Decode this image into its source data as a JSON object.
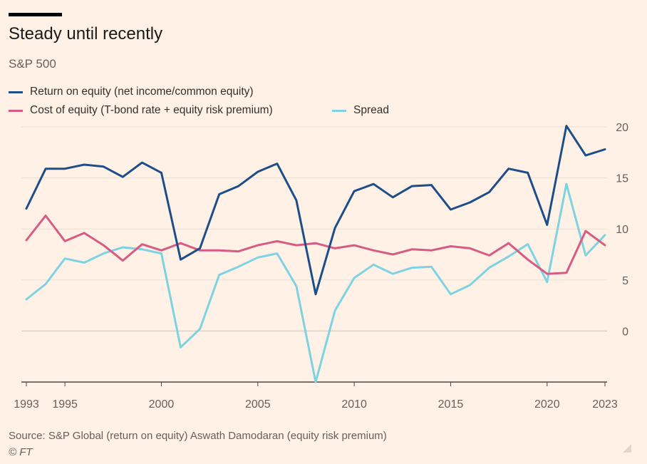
{
  "title": "Steady until recently",
  "subtitle": "S&P 500",
  "legend": [
    {
      "label": "Return on equity (net income/common equity)",
      "color": "#1d4e89"
    },
    {
      "label": "Cost of equity (T-bond rate + equity risk premium)",
      "color": "#d75c84"
    },
    {
      "label": "Spread",
      "color": "#7ed3e3"
    }
  ],
  "source": "Source: S&P Global (return on equity) Aswath Damodaran (equity risk premium)",
  "copyright": "© FT",
  "chart_data": {
    "type": "line",
    "x": [
      1993,
      1994,
      1995,
      1996,
      1997,
      1998,
      1999,
      2000,
      2001,
      2002,
      2003,
      2004,
      2005,
      2006,
      2007,
      2008,
      2009,
      2010,
      2011,
      2012,
      2013,
      2014,
      2015,
      2016,
      2017,
      2018,
      2019,
      2020,
      2021,
      2022,
      2023
    ],
    "x_ticks": [
      1993,
      1995,
      2000,
      2005,
      2010,
      2015,
      2020,
      2023
    ],
    "y_ticks": [
      0,
      5,
      10,
      15,
      20
    ],
    "ylim": [
      -5,
      20
    ],
    "grid": true,
    "series": [
      {
        "name": "Return on equity (net income/common equity)",
        "color": "#1d4e89",
        "values": [
          12.0,
          15.9,
          15.9,
          16.3,
          16.1,
          15.1,
          16.5,
          15.5,
          7.0,
          8.1,
          13.4,
          14.2,
          15.6,
          16.4,
          12.8,
          3.6,
          10.1,
          13.7,
          14.4,
          13.1,
          14.2,
          14.3,
          11.9,
          12.6,
          13.6,
          15.9,
          15.5,
          10.4,
          20.1,
          17.2,
          17.8
        ]
      },
      {
        "name": "Cost of equity (T-bond rate + equity risk premium)",
        "color": "#d75c84",
        "values": [
          8.9,
          11.3,
          8.8,
          9.6,
          8.4,
          6.9,
          8.5,
          7.9,
          8.6,
          7.9,
          7.9,
          7.8,
          8.4,
          8.8,
          8.4,
          8.6,
          8.1,
          8.4,
          7.9,
          7.5,
          8.0,
          7.9,
          8.3,
          8.1,
          7.4,
          8.6,
          7.0,
          5.6,
          5.7,
          9.8,
          8.4
        ]
      },
      {
        "name": "Spread",
        "color": "#7ed3e3",
        "values": [
          3.1,
          4.6,
          7.1,
          6.7,
          7.6,
          8.2,
          8.0,
          7.6,
          -1.6,
          0.2,
          5.5,
          6.3,
          7.2,
          7.6,
          4.4,
          -5.0,
          2.0,
          5.2,
          6.5,
          5.6,
          6.2,
          6.3,
          3.6,
          4.5,
          6.2,
          7.3,
          8.5,
          4.8,
          14.4,
          7.4,
          9.4
        ]
      }
    ]
  }
}
